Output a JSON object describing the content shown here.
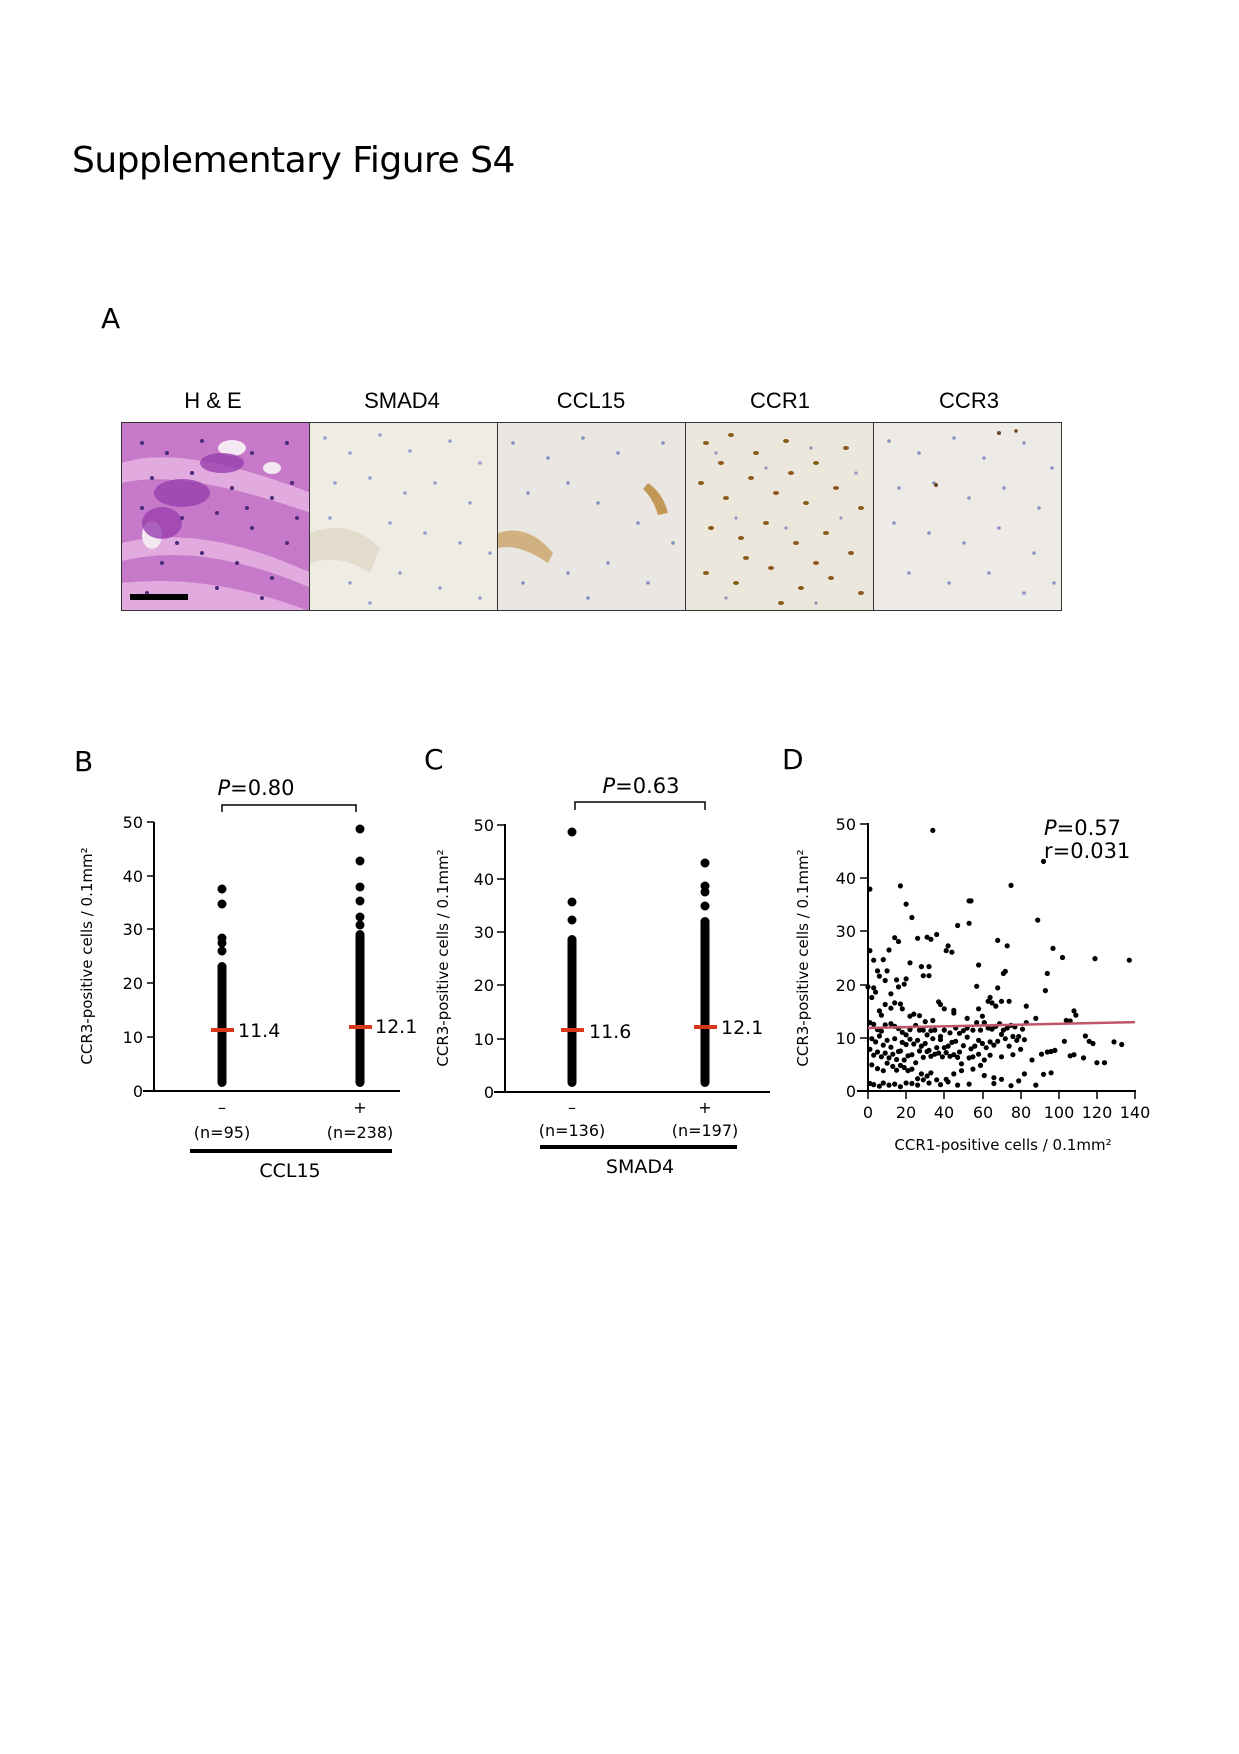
{
  "page": {
    "title": "Supplementary Figure S4"
  },
  "panel_a": {
    "letter": "A",
    "images": [
      {
        "label": "H & E",
        "stain": "hematoxylin-eosin",
        "has_scale_bar": true
      },
      {
        "label": "SMAD4",
        "stain": "IHC"
      },
      {
        "label": "CCL15",
        "stain": "IHC"
      },
      {
        "label": "CCR1",
        "stain": "IHC"
      },
      {
        "label": "CCR3",
        "stain": "IHC"
      }
    ]
  },
  "panel_b": {
    "letter": "B",
    "p_label": "P",
    "p_value": "=0.80",
    "ylabel": "CCR3-positive cells  / 0.1mm²",
    "group_title": "CCL15",
    "groups": [
      {
        "sign": "–",
        "n": "(n=95)",
        "mean": "11.4"
      },
      {
        "sign": "+",
        "n": "(n=238)",
        "mean": "12.1"
      }
    ]
  },
  "panel_c": {
    "letter": "C",
    "p_label": "P",
    "p_value": "=0.63",
    "ylabel": "CCR3-positive cells  / 0.1mm²",
    "group_title": "SMAD4",
    "groups": [
      {
        "sign": "–",
        "n": "(n=136)",
        "mean": "11.6"
      },
      {
        "sign": "+",
        "n": "(n=197)",
        "mean": "12.1"
      }
    ]
  },
  "panel_d": {
    "letter": "D",
    "p_label": "P",
    "p_value": "=0.57",
    "r_value": "r=0.031",
    "ylabel": "CCR3-positive cells  / 0.1mm²",
    "xlabel": "CCR1-positive cells  / 0.1mm²"
  },
  "colors": {
    "mean_bar": "#d9371a",
    "regression_line": "#c0566a",
    "he_stain": "#b060c0",
    "ihc_background": "#efece4",
    "ihc_brown": "#8a5a1a",
    "nuclei_blue": "#6a78b8"
  },
  "chart_data": [
    {
      "panel": "B",
      "type": "scatter",
      "title": "",
      "subtitle": "P=0.80",
      "xlabel": "CCL15",
      "ylabel": "CCR3-positive cells / 0.1mm²",
      "categories": [
        "– (n=95)",
        "+ (n=238)"
      ],
      "ylim": [
        0,
        50
      ],
      "yticks": [
        0,
        10,
        20,
        30,
        40,
        50
      ],
      "series": [
        {
          "name": "CCL15 –",
          "n": 95,
          "mean": 11.4,
          "max": 37.7,
          "outliers_high": [
            37.7,
            35.0,
            28.8,
            28.0,
            26.4
          ]
        },
        {
          "name": "CCL15 +",
          "n": 238,
          "mean": 12.1,
          "max": 48.8,
          "outliers_high": [
            48.8,
            43.0,
            38.4,
            35.6,
            32.5,
            31.0
          ]
        }
      ],
      "grid": false,
      "legend": "none"
    },
    {
      "panel": "C",
      "type": "scatter",
      "title": "",
      "subtitle": "P=0.63",
      "xlabel": "SMAD4",
      "ylabel": "CCR3-positive cells / 0.1mm²",
      "categories": [
        "– (n=136)",
        "+ (n=197)"
      ],
      "ylim": [
        0,
        50
      ],
      "yticks": [
        0,
        10,
        20,
        30,
        40,
        50
      ],
      "series": [
        {
          "name": "SMAD4 –",
          "n": 136,
          "mean": 11.6,
          "max": 48.8,
          "outliers_high": [
            48.8,
            35.6,
            32.5,
            29.4,
            28.8
          ]
        },
        {
          "name": "SMAD4 +",
          "n": 197,
          "mean": 12.1,
          "max": 43.0,
          "outliers_high": [
            43.0,
            38.4,
            37.7,
            35.0,
            32.0
          ]
        }
      ],
      "grid": false,
      "legend": "none"
    },
    {
      "panel": "D",
      "type": "scatter",
      "title": "",
      "annotations": [
        "P=0.57",
        "r=0.031"
      ],
      "xlabel": "CCR1-positive cells / 0.1mm²",
      "ylabel": "CCR3-positive cells / 0.1mm²",
      "xlim": [
        0,
        140
      ],
      "ylim": [
        0,
        50
      ],
      "xticks": [
        0,
        20,
        40,
        60,
        80,
        100,
        120,
        140
      ],
      "yticks": [
        0,
        10,
        20,
        30,
        40,
        50
      ],
      "regression": {
        "x": [
          0,
          140
        ],
        "y": [
          11.8,
          12.9
        ]
      },
      "points": [
        [
          1,
          37.8
        ],
        [
          17,
          38.4
        ],
        [
          34,
          48.8
        ],
        [
          20,
          35
        ],
        [
          23,
          32.5
        ],
        [
          26,
          28.6
        ],
        [
          14,
          28.7
        ],
        [
          16,
          28
        ],
        [
          11,
          26.4
        ],
        [
          31,
          28.8
        ],
        [
          33,
          28.4
        ],
        [
          36,
          29.3
        ],
        [
          42,
          27.2
        ],
        [
          41,
          26.3
        ],
        [
          47,
          31
        ],
        [
          53,
          35.6
        ],
        [
          54,
          35.6
        ],
        [
          53,
          31.4
        ],
        [
          68,
          28.2
        ],
        [
          73,
          27.2
        ],
        [
          75,
          38.5
        ],
        [
          89,
          32
        ],
        [
          92,
          43
        ],
        [
          97,
          26.7
        ],
        [
          102,
          25
        ],
        [
          119,
          24.8
        ],
        [
          137,
          24.5
        ],
        [
          1,
          26.3
        ],
        [
          3,
          24.5
        ],
        [
          5,
          22.5
        ],
        [
          6,
          21.5
        ],
        [
          8,
          24.6
        ],
        [
          9,
          20.7
        ],
        [
          10,
          22.5
        ],
        [
          12,
          18.2
        ],
        [
          15,
          20.8
        ],
        [
          16,
          19.5
        ],
        [
          19,
          20
        ],
        [
          20,
          21
        ],
        [
          22,
          24
        ],
        [
          28,
          23.3
        ],
        [
          32,
          23.3
        ],
        [
          32,
          21.6
        ],
        [
          29,
          21.6
        ],
        [
          44,
          26
        ],
        [
          58,
          23.6
        ],
        [
          57,
          19.6
        ],
        [
          64,
          17.5
        ],
        [
          68,
          19.3
        ],
        [
          71,
          22
        ],
        [
          72,
          22.4
        ],
        [
          93,
          18.8
        ],
        [
          94,
          22
        ],
        [
          108,
          15
        ],
        [
          109,
          14.2
        ],
        [
          0,
          19.5
        ],
        [
          2,
          17.5
        ],
        [
          3,
          19.3
        ],
        [
          4,
          18.5
        ],
        [
          6,
          15
        ],
        [
          7,
          14.2
        ],
        [
          9,
          16.2
        ],
        [
          12,
          15.5
        ],
        [
          14,
          16.5
        ],
        [
          17,
          16.3
        ],
        [
          18,
          15.4
        ],
        [
          22,
          14
        ],
        [
          24,
          14.4
        ],
        [
          27,
          14.1
        ],
        [
          30,
          13
        ],
        [
          34,
          13.2
        ],
        [
          37,
          16.7
        ],
        [
          38,
          16.2
        ],
        [
          40,
          15.4
        ],
        [
          45,
          15.1
        ],
        [
          45,
          14.6
        ],
        [
          52,
          13.6
        ],
        [
          58,
          15.4
        ],
        [
          60,
          14
        ],
        [
          63,
          16.8
        ],
        [
          65,
          16.5
        ],
        [
          67,
          15.9
        ],
        [
          70,
          16.8
        ],
        [
          74,
          16.8
        ],
        [
          83,
          15.9
        ],
        [
          88,
          13.6
        ],
        [
          104,
          13.2
        ],
        [
          106,
          13.1
        ],
        [
          1,
          12.8
        ],
        [
          3,
          12.5
        ],
        [
          5,
          11.5
        ],
        [
          7,
          11.2
        ],
        [
          9,
          12.4
        ],
        [
          12,
          12.6
        ],
        [
          14,
          12.1
        ],
        [
          16,
          11.7
        ],
        [
          18,
          11
        ],
        [
          20,
          10.5
        ],
        [
          22,
          11.5
        ],
        [
          25,
          12.3
        ],
        [
          27,
          11.4
        ],
        [
          29,
          11.4
        ],
        [
          31,
          10.5
        ],
        [
          33,
          11.3
        ],
        [
          35,
          11.4
        ],
        [
          38,
          10.2
        ],
        [
          40,
          11.4
        ],
        [
          43,
          10.9
        ],
        [
          46,
          11.8
        ],
        [
          48,
          10.8
        ],
        [
          50,
          11.3
        ],
        [
          52,
          11.8
        ],
        [
          55,
          11.4
        ],
        [
          57,
          12.8
        ],
        [
          59,
          11.4
        ],
        [
          61,
          12.8
        ],
        [
          63,
          11.8
        ],
        [
          65,
          11.6
        ],
        [
          67,
          12.1
        ],
        [
          69,
          12.6
        ],
        [
          71,
          11.4
        ],
        [
          73,
          11.8
        ],
        [
          75,
          12.3
        ],
        [
          77,
          12
        ],
        [
          79,
          10.2
        ],
        [
          81,
          11.6
        ],
        [
          83,
          12.8
        ],
        [
          2,
          9.8
        ],
        [
          4,
          9.2
        ],
        [
          6,
          10.3
        ],
        [
          8,
          8.6
        ],
        [
          10,
          9.5
        ],
        [
          12,
          8.2
        ],
        [
          14,
          9.8
        ],
        [
          16,
          7.4
        ],
        [
          18,
          9.1
        ],
        [
          20,
          8.7
        ],
        [
          22,
          9.7
        ],
        [
          24,
          8.8
        ],
        [
          26,
          9.5
        ],
        [
          28,
          8.4
        ],
        [
          30,
          8.9
        ],
        [
          32,
          7.6
        ],
        [
          34,
          9.8
        ],
        [
          36,
          8.1
        ],
        [
          38,
          9.6
        ],
        [
          40,
          8.1
        ],
        [
          42,
          8.4
        ],
        [
          44,
          9.1
        ],
        [
          46,
          9.3
        ],
        [
          48,
          7.3
        ],
        [
          50,
          8.5
        ],
        [
          52,
          10.1
        ],
        [
          54,
          7.9
        ],
        [
          56,
          8.4
        ],
        [
          58,
          9.5
        ],
        [
          60,
          8.9
        ],
        [
          62,
          8.1
        ],
        [
          64,
          9.2
        ],
        [
          66,
          8.6
        ],
        [
          68,
          9.3
        ],
        [
          70,
          10.6
        ],
        [
          72,
          9.8
        ],
        [
          74,
          8.4
        ],
        [
          76,
          10.2
        ],
        [
          78,
          9.5
        ],
        [
          80,
          7.8
        ],
        [
          82,
          9.6
        ],
        [
          94,
          7.3
        ],
        [
          96,
          7.4
        ],
        [
          98,
          7.6
        ],
        [
          103,
          9.3
        ],
        [
          114,
          10.3
        ],
        [
          116,
          9.3
        ],
        [
          118,
          8.9
        ],
        [
          129,
          9.2
        ],
        [
          133,
          8.7
        ],
        [
          120,
          5.3
        ],
        [
          124,
          5.3
        ],
        [
          106,
          6.6
        ],
        [
          108,
          6.8
        ],
        [
          1,
          7.8
        ],
        [
          3,
          6.7
        ],
        [
          5,
          7.3
        ],
        [
          7,
          6.4
        ],
        [
          9,
          7.1
        ],
        [
          11,
          6.2
        ],
        [
          13,
          6.9
        ],
        [
          15,
          5.9
        ],
        [
          17,
          7.5
        ],
        [
          19,
          5.8
        ],
        [
          21,
          6.6
        ],
        [
          23,
          6.8
        ],
        [
          25,
          5.3
        ],
        [
          27,
          7.5
        ],
        [
          29,
          6.3
        ],
        [
          31,
          7.4
        ],
        [
          33,
          6.5
        ],
        [
          35,
          6.9
        ],
        [
          37,
          7.1
        ],
        [
          39,
          6.4
        ],
        [
          41,
          7.2
        ],
        [
          43,
          6.5
        ],
        [
          45,
          6.8
        ],
        [
          47,
          6.3
        ],
        [
          49,
          5.1
        ],
        [
          53,
          6.2
        ],
        [
          55,
          6.4
        ],
        [
          58,
          6.9
        ],
        [
          61,
          5.8
        ],
        [
          64,
          6.7
        ],
        [
          70,
          6.4
        ],
        [
          76,
          6.8
        ],
        [
          86,
          5.8
        ],
        [
          91,
          6.9
        ],
        [
          113,
          6.2
        ],
        [
          2,
          4.9
        ],
        [
          5,
          4.2
        ],
        [
          8,
          3.8
        ],
        [
          10,
          5.2
        ],
        [
          13,
          4.6
        ],
        [
          15,
          3.9
        ],
        [
          17,
          4.8
        ],
        [
          19,
          4.4
        ],
        [
          21,
          3.8
        ],
        [
          23,
          4.1
        ],
        [
          26,
          2.3
        ],
        [
          28,
          3.2
        ],
        [
          31,
          2.8
        ],
        [
          33,
          3.4
        ],
        [
          36,
          2.1
        ],
        [
          41,
          2.2
        ],
        [
          45,
          3.2
        ],
        [
          49,
          3.8
        ],
        [
          55,
          4.1
        ],
        [
          59,
          4.8
        ],
        [
          61,
          2.9
        ],
        [
          66,
          2.5
        ],
        [
          70,
          2.2
        ],
        [
          82,
          3.2
        ],
        [
          92,
          3.1
        ],
        [
          96,
          3.4
        ],
        [
          1,
          1.4
        ],
        [
          3,
          1.2
        ],
        [
          6,
          0.9
        ],
        [
          8,
          1.5
        ],
        [
          11,
          1.1
        ],
        [
          14,
          1.3
        ],
        [
          17,
          0.8
        ],
        [
          20,
          1.5
        ],
        [
          23,
          1.4
        ],
        [
          26,
          1.1
        ],
        [
          29,
          2.1
        ],
        [
          32,
          1.5
        ],
        [
          38,
          1.2
        ],
        [
          42,
          1.7
        ],
        [
          47,
          1.1
        ],
        [
          53,
          1.3
        ],
        [
          66,
          1.4
        ],
        [
          75,
          1
        ],
        [
          79,
          1.9
        ],
        [
          88,
          1.1
        ]
      ],
      "grid": false,
      "legend": "none"
    }
  ]
}
